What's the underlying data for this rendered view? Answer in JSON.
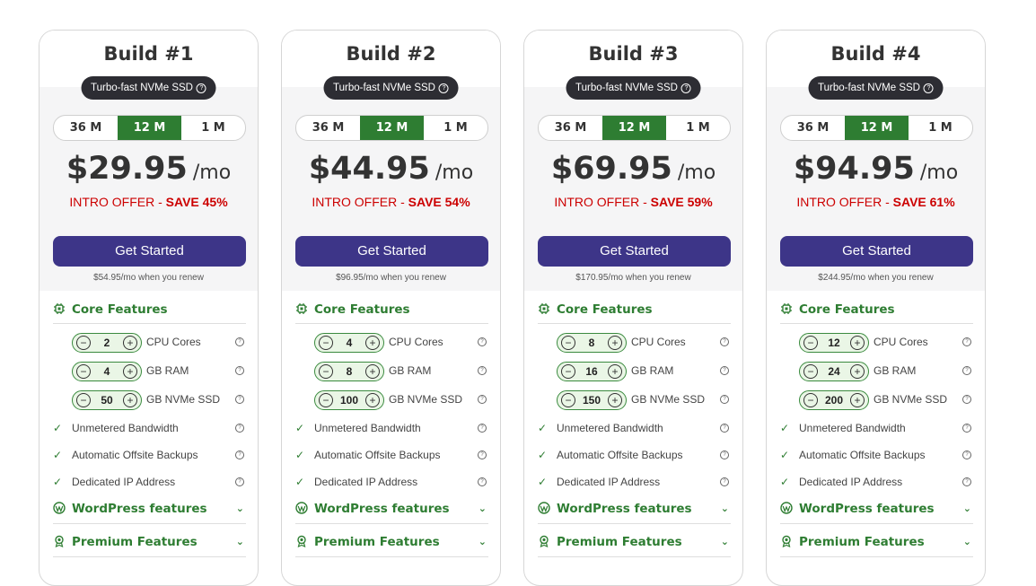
{
  "badge_text": "Turbo-fast NVMe SSD",
  "terms": [
    "36 M",
    "12 M",
    "1 M"
  ],
  "selected_term": "12 M",
  "button_label": "Get Started",
  "intro_prefix": "INTRO OFFER - ",
  "per_label": "/mo",
  "sections": {
    "core": "Core Features",
    "wordpress": "WordPress features",
    "premium": "Premium Features"
  },
  "resource_labels": [
    "CPU Cores",
    "GB RAM",
    "GB NVMe SSD"
  ],
  "included_features": [
    "Unmetered Bandwidth",
    "Automatic Offsite Backups",
    "Dedicated IP Address"
  ],
  "colors": {
    "accent_green": "#2e7d32",
    "button_purple": "#3d3588",
    "save_red": "#cc0000",
    "badge_dark": "#2d2d33"
  },
  "icons": {
    "core": "chip-icon",
    "wordpress": "wordpress-icon",
    "premium": "award-icon",
    "check": "check-icon",
    "help": "help-circle-icon",
    "expand": "chevron-down-icon"
  },
  "plans": [
    {
      "title": "Build #1",
      "price": "$29.95",
      "save": "SAVE 45%",
      "renew": "$54.95/mo when you renew",
      "cpu": "2",
      "ram": "4",
      "ssd": "50"
    },
    {
      "title": "Build #2",
      "price": "$44.95",
      "save": "SAVE 54%",
      "renew": "$96.95/mo when you renew",
      "cpu": "4",
      "ram": "8",
      "ssd": "100"
    },
    {
      "title": "Build #3",
      "price": "$69.95",
      "save": "SAVE 59%",
      "renew": "$170.95/mo when you renew",
      "cpu": "8",
      "ram": "16",
      "ssd": "150"
    },
    {
      "title": "Build #4",
      "price": "$94.95",
      "save": "SAVE 61%",
      "renew": "$244.95/mo when you renew",
      "cpu": "12",
      "ram": "24",
      "ssd": "200"
    }
  ]
}
